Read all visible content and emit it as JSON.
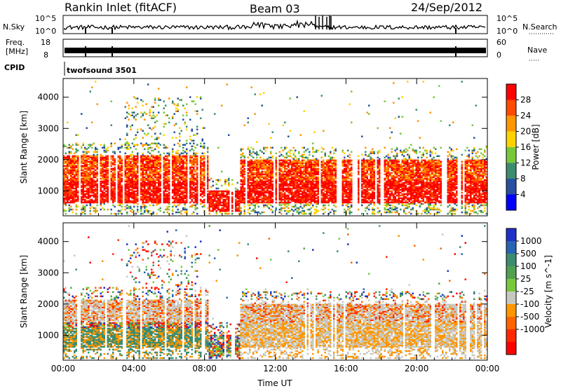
{
  "header": {
    "station": "Rankin Inlet (fitACF)",
    "beam": "Beam 03",
    "date": "24/Sep/2012"
  },
  "top_panels": {
    "nsky_label": "N.Sky",
    "nsky_ticks": [
      "10^5",
      "10^0"
    ],
    "nsearch_label": "N.Search",
    "nsearch_ticks": [
      "10^5",
      "10^0"
    ],
    "freq_label_1": "Freq.",
    "freq_label_2": "[MHz]",
    "freq_ticks": [
      "18",
      "8"
    ],
    "nave_label": "Nave",
    "nave_ticks": [
      "60",
      "0"
    ],
    "cpid_label": "CPID",
    "cpid_value": "twofsound 3501"
  },
  "chart_data": [
    {
      "type": "heatmap",
      "name": "power",
      "ylabel": "Slant Range [km]",
      "xlabel": "",
      "x_ticks": [
        "00:00",
        "04:00",
        "08:00",
        "12:00",
        "16:00",
        "20:00",
        "00:00"
      ],
      "y_ticks": [
        1000,
        2000,
        3000,
        4000
      ],
      "xlim": [
        0,
        24
      ],
      "ylim": [
        200,
        4600
      ],
      "colorbar": {
        "label": "Power [dB]",
        "ticks": [
          "28",
          "24",
          "20",
          "16",
          "12",
          "8",
          "4"
        ],
        "colors": [
          "#ff0000",
          "#ff4a00",
          "#ff9600",
          "#ffd200",
          "#78c83c",
          "#3c8c6e",
          "#2850a0",
          "#0000ff"
        ]
      }
    },
    {
      "type": "heatmap",
      "name": "velocity",
      "ylabel": "Slant Range [km]",
      "xlabel": "Time UT",
      "x_ticks": [
        "00:00",
        "04:00",
        "08:00",
        "12:00",
        "16:00",
        "20:00",
        "00:00"
      ],
      "y_ticks": [
        1000,
        2000,
        3000,
        4000
      ],
      "xlim": [
        0,
        24
      ],
      "ylim": [
        200,
        4600
      ],
      "colorbar": {
        "label": "Velocity [m s^-1]",
        "ticks": [
          "1000",
          "500",
          "100",
          "25",
          "-25",
          "-100",
          "-500",
          "-1000"
        ],
        "colors": [
          "#1e32c8",
          "#2864b4",
          "#3c8c6e",
          "#50a050",
          "#78c83c",
          "#c8c8c0",
          "#ff9600",
          "#ff6400",
          "#ff2800",
          "#ff0000"
        ]
      }
    }
  ]
}
